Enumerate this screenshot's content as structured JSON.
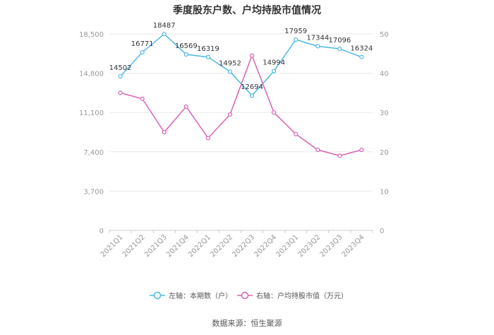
{
  "chart_data": {
    "type": "line",
    "title": "季度股东户数、户均持股市值情况",
    "categories": [
      "2021Q1",
      "2021Q2",
      "2021Q3",
      "2021Q4",
      "2022Q1",
      "2022Q2",
      "2022Q3",
      "2022Q4",
      "2023Q1",
      "2023Q2",
      "2023Q3",
      "2023Q4"
    ],
    "left_axis": {
      "ticks": [
        "0",
        "3,700",
        "7,400",
        "11,100",
        "14,800",
        "18,500"
      ],
      "min": 0,
      "max": 18500
    },
    "right_axis": {
      "ticks": [
        "0",
        "10",
        "20",
        "30",
        "40",
        "50"
      ],
      "min": 0,
      "max": 50
    },
    "series": [
      {
        "name": "左轴：本期数（户）",
        "axis": "left",
        "color": "#4db8e8",
        "values": [
          14502,
          16771,
          18487,
          16569,
          16319,
          14952,
          12694,
          14994,
          17959,
          17344,
          17096,
          16324
        ],
        "data_labels": [
          "14502",
          "16771",
          "18487",
          "16569",
          "16319",
          "14952",
          "12694",
          "14994",
          "17959",
          "17344",
          "17096",
          "16324"
        ]
      },
      {
        "name": "右轴：户均持股市值（万元）",
        "axis": "right",
        "color": "#d963b3",
        "values": [
          35.0,
          33.5,
          25.0,
          31.5,
          23.5,
          29.5,
          44.5,
          30.0,
          24.5,
          20.5,
          19.0,
          20.5
        ]
      }
    ],
    "grid": true,
    "legend": "bottom"
  },
  "source": "数据来源：恒生聚源"
}
